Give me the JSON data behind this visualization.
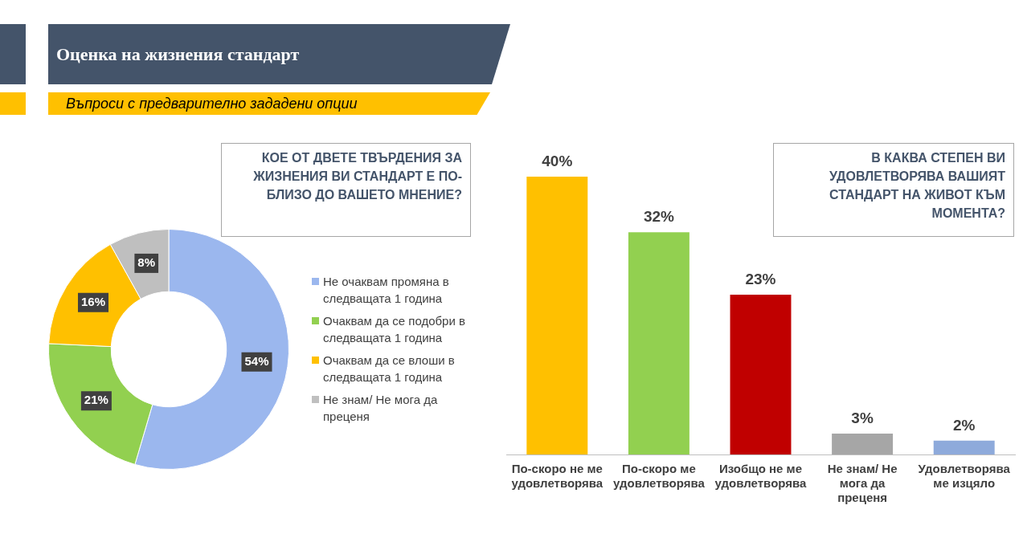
{
  "chart_data": [
    {
      "type": "other",
      "title": "Оценка на жизнения стандарт",
      "subtitle": "Въпроси с предварително зададени опции"
    },
    {
      "type": "donut",
      "title": "КОЕ ОТ ДВЕТЕ ТВЪРДЕНИЯ ЗА ЖИЗНЕНИЯ ВИ СТАНДАРТ  Е ПО-БЛИЗО ДО ВАШЕТО МНЕНИЕ?",
      "categories": [
        "Не очаквам промяна в следващата 1 година",
        "Очаквам да се подобри в следващата 1 година",
        "Очаквам да се влоши в следващата 1 година",
        "Не знам/ Не мога да преценя"
      ],
      "values": [
        54,
        21,
        16,
        8
      ],
      "colors": [
        "#9bb7ee",
        "#92d050",
        "#ffc000",
        "#bfbfbf"
      ],
      "value_labels": [
        "54%",
        "21%",
        "16%",
        "8%"
      ],
      "legend": "right"
    },
    {
      "type": "bar",
      "title": "В КАКВА СТЕПЕН ВИ УДОВЛЕТВОРЯВА ВАШИЯТ СТАНДАРТ НА ЖИВОТ КЪМ МОМЕНТА?",
      "categories": [
        "По-скоро не ме удовлетворява",
        "По-скоро ме удовлетворява",
        "Изобщо не ме удовлетворява",
        "Не знам/ Не мога да преценя",
        "Удовлетворява ме изцяло"
      ],
      "values": [
        40,
        32,
        23,
        3,
        2
      ],
      "colors": [
        "#ffc000",
        "#92d050",
        "#c00000",
        "#a6a6a6",
        "#8eaadb"
      ],
      "value_labels": [
        "40%",
        "32%",
        "23%",
        "3%",
        "2%"
      ],
      "grid": false
    }
  ]
}
